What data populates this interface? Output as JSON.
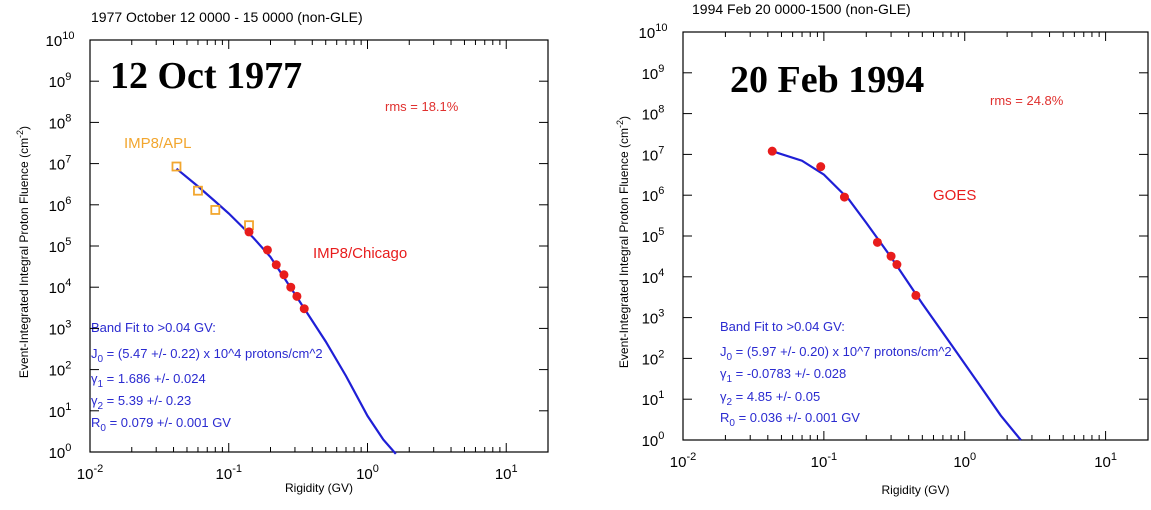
{
  "colors": {
    "axis": "#000000",
    "fit_line": "#1f1fd6",
    "info_text": "#2a2ad0",
    "rms": "#e0302e",
    "red_point": "#e81c1c",
    "orange_point": "#f2a62e"
  },
  "chart_data": [
    {
      "type": "scatter",
      "header": "1977 October 12 0000 - 15 0000 (non-GLE)",
      "title": "12 Oct 1977",
      "xlabel": "Rigidity (GV)",
      "ylabel": "Event-Integrated Integral Proton Fluence (cm^-2)",
      "x_scale": "log",
      "y_scale": "log",
      "xlim": [
        0.01,
        20
      ],
      "ylim": [
        1,
        10000000000
      ],
      "x_ticks": [
        "10^-2",
        "10^-1",
        "10^0",
        "10^1"
      ],
      "y_ticks": [
        "10^0",
        "10^1",
        "10^2",
        "10^3",
        "10^4",
        "10^5",
        "10^6",
        "10^7",
        "10^8",
        "10^9",
        "10^10"
      ],
      "grid": false,
      "rms": "rms = 18.1%",
      "fit_label": "Band Fit to >0.04 GV:",
      "fit_params": [
        "J_0 = (5.47 +/- 0.22) x 10^4 protons/cm^2",
        "γ_1 = 1.686 +/- 0.024",
        "γ_2 = 5.39 +/- 0.23",
        "R_0 = 0.079 +/- 0.001 GV"
      ],
      "series": [
        {
          "name": "IMP8/APL",
          "marker": "open-square",
          "color": "#f2a62e",
          "x": [
            0.042,
            0.06,
            0.08,
            0.14
          ],
          "y": [
            8500000,
            2200000,
            750000,
            320000
          ]
        },
        {
          "name": "IMP8/Chicago",
          "marker": "filled-circle",
          "color": "#e81c1c",
          "x": [
            0.14,
            0.19,
            0.22,
            0.25,
            0.28,
            0.31,
            0.35
          ],
          "y": [
            220000,
            80000,
            35000,
            20000,
            10000,
            6000,
            3000
          ]
        },
        {
          "name": "fit",
          "type": "line",
          "color": "#1f1fd6",
          "x": [
            0.042,
            0.06,
            0.08,
            0.1,
            0.15,
            0.2,
            0.3,
            0.5,
            0.7,
            1.0,
            1.3,
            1.6
          ],
          "y": [
            7500000,
            2800000,
            1200000,
            620000,
            160000,
            54000,
            6800,
            480,
            70,
            7.5,
            2,
            0.9
          ]
        }
      ]
    },
    {
      "type": "scatter",
      "header": "1994 Feb 20 0000-1500 (non-GLE)",
      "title": "20 Feb 1994",
      "xlabel": "Rigidity (GV)",
      "ylabel": "Event-Integrated Integral Proton Fluence (cm^-2)",
      "x_scale": "log",
      "y_scale": "log",
      "xlim": [
        0.01,
        20
      ],
      "ylim": [
        1,
        10000000000
      ],
      "x_ticks": [
        "10^-2",
        "10^-1",
        "10^0",
        "10^1"
      ],
      "y_ticks": [
        "10^0",
        "10^1",
        "10^2",
        "10^3",
        "10^4",
        "10^5",
        "10^6",
        "10^7",
        "10^8",
        "10^9",
        "10^10"
      ],
      "grid": false,
      "rms": "rms = 24.8%",
      "fit_label": "Band Fit to >0.04 GV:",
      "fit_params": [
        "J_0 = (5.97 +/- 0.20) x 10^7 protons/cm^2",
        "γ_1 = -0.0783 +/- 0.028",
        "γ_2 = 4.85 +/- 0.05",
        "R_0 = 0.036 +/- 0.001 GV"
      ],
      "series": [
        {
          "name": "GOES",
          "marker": "filled-circle",
          "color": "#e81c1c",
          "x": [
            0.043,
            0.095,
            0.14,
            0.24,
            0.3,
            0.33,
            0.45
          ],
          "y": [
            12000000,
            5000000,
            900000,
            70000,
            32000,
            20000,
            3500
          ]
        },
        {
          "name": "fit",
          "type": "line",
          "color": "#1f1fd6",
          "x": [
            0.043,
            0.07,
            0.1,
            0.15,
            0.2,
            0.3,
            0.5,
            0.8,
            1.2,
            1.8,
            2.5
          ],
          "y": [
            12000000,
            7000000,
            3200000,
            800000,
            210000,
            30000,
            2200,
            220,
            30,
            4,
            1
          ]
        }
      ]
    }
  ]
}
